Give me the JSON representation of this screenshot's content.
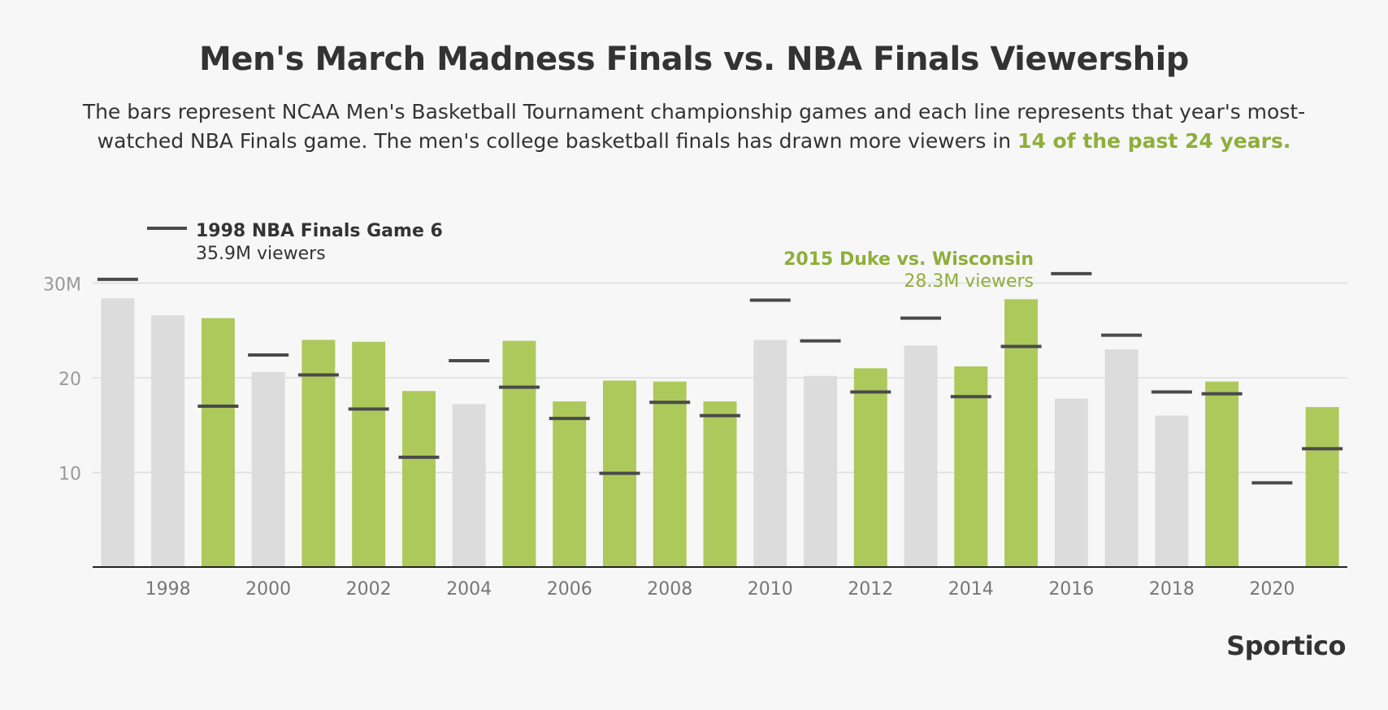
{
  "header": {
    "title": "Men's March Madness Finals vs. NBA Finals Viewership",
    "subtitle_main": "The bars represent NCAA Men's Basketball Tournament championship games and each line represents that year's most-watched NBA Finals game. The men's college basketball finals has drawn more viewers in ",
    "subtitle_highlight": "14 of the past 24 years."
  },
  "brand": {
    "logo": "Sportico"
  },
  "colors": {
    "ncaa_more": "#adc95c",
    "nba_more": "#dcdcdc",
    "nba_line": "#4a4a4a",
    "highlight_text": "#8fae3a",
    "axis_text": "#999999",
    "gridline": "#dddddd"
  },
  "chart_data": {
    "type": "bar",
    "categories": [
      1997,
      1998,
      1999,
      2000,
      2001,
      2002,
      2003,
      2004,
      2005,
      2006,
      2007,
      2008,
      2009,
      2010,
      2011,
      2012,
      2013,
      2014,
      2015,
      2016,
      2017,
      2018,
      2019,
      2020,
      2021
    ],
    "x_tick_labels": [
      "1998",
      "2000",
      "2002",
      "2004",
      "2006",
      "2008",
      "2010",
      "2012",
      "2014",
      "2016",
      "2018",
      "2020"
    ],
    "y_tick_labels": [
      "30M",
      "20",
      "10"
    ],
    "y_ticks": [
      30,
      20,
      10
    ],
    "ylim": [
      0,
      36
    ],
    "grid": true,
    "series": [
      {
        "type": "bar",
        "values": [
          28.4,
          26.6,
          26.3,
          20.6,
          24.0,
          23.8,
          18.6,
          17.2,
          23.9,
          17.5,
          19.7,
          19.6,
          17.5,
          24.0,
          20.2,
          21.0,
          23.4,
          21.2,
          28.3,
          17.8,
          23.0,
          16.0,
          19.6,
          null,
          16.9
        ]
      },
      {
        "type": "line-marker",
        "values": [
          30.4,
          35.9,
          17.0,
          22.4,
          20.3,
          16.7,
          11.6,
          21.8,
          19.0,
          15.7,
          9.9,
          17.4,
          16.0,
          28.2,
          23.9,
          18.5,
          26.3,
          18.0,
          23.3,
          31.0,
          24.5,
          18.5,
          18.3,
          8.9,
          12.5
        ]
      }
    ],
    "ncaa_more_viewers": [
      false,
      false,
      true,
      false,
      true,
      true,
      true,
      false,
      true,
      true,
      true,
      true,
      true,
      false,
      false,
      true,
      false,
      true,
      true,
      false,
      false,
      false,
      true,
      false,
      true
    ],
    "annotations": [
      {
        "title": "1998 NBA Finals Game 6",
        "detail": "35.9M viewers",
        "year": 1998,
        "value": 35.9,
        "style": "dark"
      },
      {
        "title": "2015 Duke vs. Wisconsin",
        "detail": "28.3M viewers",
        "year": 2015,
        "value": 28.3,
        "style": "highlight"
      }
    ]
  }
}
